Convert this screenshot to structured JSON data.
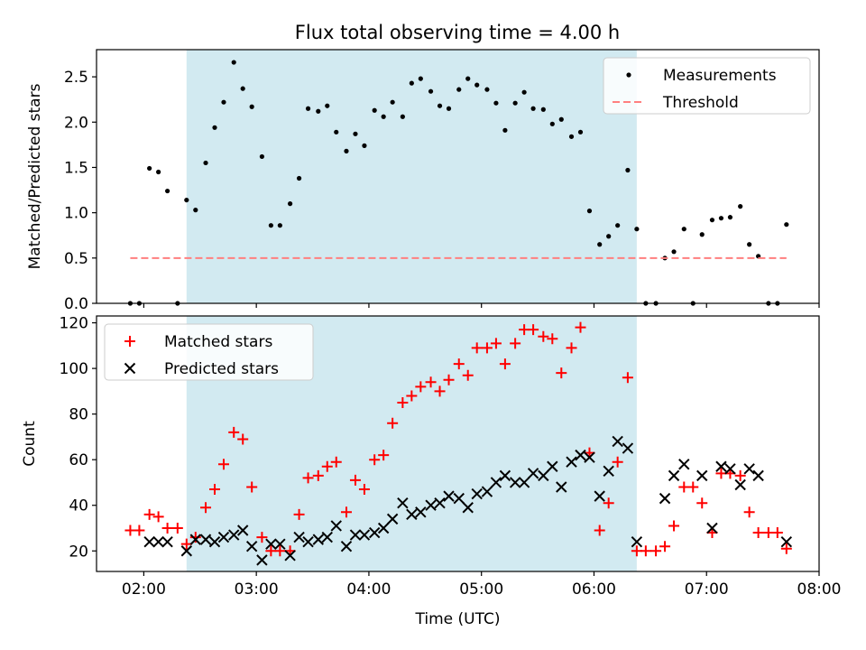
{
  "figure_title": "Flux total observing time = 4.00 h",
  "colors": {
    "shade": "#add8e6",
    "measurements": "#000000",
    "threshold": "#ff7f7f",
    "matched": "#ff0000",
    "predicted": "#000000"
  },
  "chart_data": [
    {
      "type": "scatter",
      "title": "",
      "xlabel": "",
      "ylabel": "Matched/Predicted stars",
      "xlim": [
        1.58,
        8.0
      ],
      "ylim": [
        0,
        2.8
      ],
      "yticks": [
        0,
        0.5,
        1.0,
        1.5,
        2.0,
        2.5
      ],
      "ytick_labels": [
        "0.0",
        "0.5",
        "1.0",
        "1.5",
        "2.0",
        "2.5"
      ],
      "shaded_region": [
        2.38,
        6.38
      ],
      "grid": false,
      "legend": {
        "placement": "upper right",
        "entries": [
          "Measurements",
          "Threshold"
        ]
      },
      "series": [
        {
          "name": "Measurements",
          "marker": "dot",
          "points": [
            [
              1.88,
              0.0
            ],
            [
              1.96,
              0.0
            ],
            [
              2.05,
              1.49
            ],
            [
              2.13,
              1.45
            ],
            [
              2.21,
              1.24
            ],
            [
              2.3,
              0.0
            ],
            [
              2.38,
              1.14
            ],
            [
              2.46,
              1.03
            ],
            [
              2.55,
              1.55
            ],
            [
              2.63,
              1.94
            ],
            [
              2.71,
              2.22
            ],
            [
              2.8,
              2.66
            ],
            [
              2.88,
              2.37
            ],
            [
              2.96,
              2.17
            ],
            [
              3.05,
              1.62
            ],
            [
              3.13,
              0.86
            ],
            [
              3.21,
              0.86
            ],
            [
              3.3,
              1.1
            ],
            [
              3.38,
              1.38
            ],
            [
              3.46,
              2.15
            ],
            [
              3.55,
              2.12
            ],
            [
              3.63,
              2.18
            ],
            [
              3.71,
              1.89
            ],
            [
              3.8,
              1.68
            ],
            [
              3.88,
              1.87
            ],
            [
              3.96,
              1.74
            ],
            [
              4.05,
              2.13
            ],
            [
              4.13,
              2.06
            ],
            [
              4.21,
              2.22
            ],
            [
              4.3,
              2.06
            ],
            [
              4.38,
              2.43
            ],
            [
              4.46,
              2.48
            ],
            [
              4.55,
              2.34
            ],
            [
              4.63,
              2.18
            ],
            [
              4.71,
              2.15
            ],
            [
              4.8,
              2.36
            ],
            [
              4.88,
              2.48
            ],
            [
              4.96,
              2.41
            ],
            [
              5.05,
              2.36
            ],
            [
              5.13,
              2.21
            ],
            [
              5.21,
              1.91
            ],
            [
              5.3,
              2.21
            ],
            [
              5.38,
              2.33
            ],
            [
              5.46,
              2.15
            ],
            [
              5.55,
              2.14
            ],
            [
              5.63,
              1.98
            ],
            [
              5.71,
              2.03
            ],
            [
              5.8,
              1.84
            ],
            [
              5.88,
              1.89
            ],
            [
              5.96,
              1.02
            ],
            [
              6.05,
              0.65
            ],
            [
              6.13,
              0.74
            ],
            [
              6.21,
              0.86
            ],
            [
              6.3,
              1.47
            ],
            [
              6.38,
              0.82
            ],
            [
              6.46,
              0.0
            ],
            [
              6.55,
              0.0
            ],
            [
              6.63,
              0.5
            ],
            [
              6.71,
              0.57
            ],
            [
              6.8,
              0.82
            ],
            [
              6.88,
              0.0
            ],
            [
              6.96,
              0.76
            ],
            [
              7.05,
              0.92
            ],
            [
              7.13,
              0.94
            ],
            [
              7.21,
              0.95
            ],
            [
              7.3,
              1.07
            ],
            [
              7.38,
              0.65
            ],
            [
              7.46,
              0.52
            ],
            [
              7.55,
              0.0
            ],
            [
              7.63,
              0.0
            ],
            [
              7.71,
              0.87
            ]
          ]
        },
        {
          "name": "Threshold",
          "marker": "dashed-line",
          "points": [
            [
              1.88,
              0.5
            ],
            [
              7.71,
              0.5
            ]
          ]
        }
      ]
    },
    {
      "type": "scatter",
      "title": "",
      "xlabel": "Time (UTC)",
      "ylabel": "Count",
      "xlim": [
        1.58,
        8.0
      ],
      "ylim": [
        11,
        123
      ],
      "xticks": [
        2,
        3,
        4,
        5,
        6,
        7,
        8
      ],
      "xtick_labels": [
        "02:00",
        "03:00",
        "04:00",
        "05:00",
        "06:00",
        "07:00",
        "08:00"
      ],
      "yticks": [
        20,
        40,
        60,
        80,
        100,
        120
      ],
      "ytick_labels": [
        "20",
        "40",
        "60",
        "80",
        "100",
        "120"
      ],
      "shaded_region": [
        2.38,
        6.38
      ],
      "grid": false,
      "legend": {
        "placement": "upper left",
        "entries": [
          "Matched stars",
          "Predicted stars"
        ]
      },
      "series": [
        {
          "name": "Matched stars",
          "marker": "plus",
          "points": [
            [
              1.88,
              29
            ],
            [
              1.96,
              29
            ],
            [
              2.05,
              36
            ],
            [
              2.13,
              35
            ],
            [
              2.21,
              30
            ],
            [
              2.3,
              30
            ],
            [
              2.38,
              23
            ],
            [
              2.46,
              26
            ],
            [
              2.55,
              39
            ],
            [
              2.63,
              47
            ],
            [
              2.71,
              58
            ],
            [
              2.8,
              72
            ],
            [
              2.88,
              69
            ],
            [
              2.96,
              48
            ],
            [
              3.05,
              26
            ],
            [
              3.13,
              20
            ],
            [
              3.21,
              20
            ],
            [
              3.3,
              20
            ],
            [
              3.38,
              36
            ],
            [
              3.46,
              52
            ],
            [
              3.55,
              53
            ],
            [
              3.63,
              57
            ],
            [
              3.71,
              59
            ],
            [
              3.8,
              37
            ],
            [
              3.88,
              51
            ],
            [
              3.96,
              47
            ],
            [
              4.05,
              60
            ],
            [
              4.13,
              62
            ],
            [
              4.21,
              76
            ],
            [
              4.3,
              85
            ],
            [
              4.38,
              88
            ],
            [
              4.46,
              92
            ],
            [
              4.55,
              94
            ],
            [
              4.63,
              90
            ],
            [
              4.71,
              95
            ],
            [
              4.8,
              102
            ],
            [
              4.88,
              97
            ],
            [
              4.96,
              109
            ],
            [
              5.05,
              109
            ],
            [
              5.13,
              111
            ],
            [
              5.21,
              102
            ],
            [
              5.3,
              111
            ],
            [
              5.38,
              117
            ],
            [
              5.46,
              117
            ],
            [
              5.55,
              114
            ],
            [
              5.63,
              113
            ],
            [
              5.71,
              98
            ],
            [
              5.8,
              109
            ],
            [
              5.88,
              118
            ],
            [
              5.96,
              63
            ],
            [
              6.05,
              29
            ],
            [
              6.13,
              41
            ],
            [
              6.21,
              59
            ],
            [
              6.3,
              96
            ],
            [
              6.38,
              20
            ],
            [
              6.46,
              20
            ],
            [
              6.55,
              20
            ],
            [
              6.63,
              22
            ],
            [
              6.71,
              31
            ],
            [
              6.8,
              48
            ],
            [
              6.88,
              48
            ],
            [
              6.96,
              41
            ],
            [
              7.05,
              28
            ],
            [
              7.13,
              54
            ],
            [
              7.21,
              54
            ],
            [
              7.3,
              53
            ],
            [
              7.38,
              37
            ],
            [
              7.46,
              28
            ],
            [
              7.55,
              28
            ],
            [
              7.63,
              28
            ],
            [
              7.71,
              21
            ]
          ]
        },
        {
          "name": "Predicted stars",
          "marker": "x",
          "points": [
            [
              2.05,
              24
            ],
            [
              2.13,
              24
            ],
            [
              2.21,
              24
            ],
            [
              2.38,
              20
            ],
            [
              2.46,
              25
            ],
            [
              2.55,
              25
            ],
            [
              2.63,
              24
            ],
            [
              2.71,
              26
            ],
            [
              2.8,
              27
            ],
            [
              2.88,
              29
            ],
            [
              2.96,
              22
            ],
            [
              3.05,
              16
            ],
            [
              3.13,
              23
            ],
            [
              3.21,
              23
            ],
            [
              3.3,
              18
            ],
            [
              3.38,
              26
            ],
            [
              3.46,
              24
            ],
            [
              3.55,
              25
            ],
            [
              3.63,
              26
            ],
            [
              3.71,
              31
            ],
            [
              3.8,
              22
            ],
            [
              3.88,
              27
            ],
            [
              3.96,
              27
            ],
            [
              4.05,
              28
            ],
            [
              4.13,
              30
            ],
            [
              4.21,
              34
            ],
            [
              4.3,
              41
            ],
            [
              4.38,
              36
            ],
            [
              4.46,
              37
            ],
            [
              4.55,
              40
            ],
            [
              4.63,
              41
            ],
            [
              4.71,
              44
            ],
            [
              4.8,
              43
            ],
            [
              4.88,
              39
            ],
            [
              4.96,
              45
            ],
            [
              5.05,
              46
            ],
            [
              5.13,
              50
            ],
            [
              5.21,
              53
            ],
            [
              5.3,
              50
            ],
            [
              5.38,
              50
            ],
            [
              5.46,
              54
            ],
            [
              5.55,
              53
            ],
            [
              5.63,
              57
            ],
            [
              5.71,
              48
            ],
            [
              5.8,
              59
            ],
            [
              5.88,
              62
            ],
            [
              5.96,
              61
            ],
            [
              6.05,
              44
            ],
            [
              6.13,
              55
            ],
            [
              6.21,
              68
            ],
            [
              6.3,
              65
            ],
            [
              6.38,
              24
            ],
            [
              6.63,
              43
            ],
            [
              6.71,
              53
            ],
            [
              6.8,
              58
            ],
            [
              6.96,
              53
            ],
            [
              7.05,
              30
            ],
            [
              7.13,
              57
            ],
            [
              7.21,
              56
            ],
            [
              7.3,
              49
            ],
            [
              7.38,
              56
            ],
            [
              7.46,
              53
            ],
            [
              7.71,
              24
            ]
          ]
        }
      ]
    }
  ]
}
